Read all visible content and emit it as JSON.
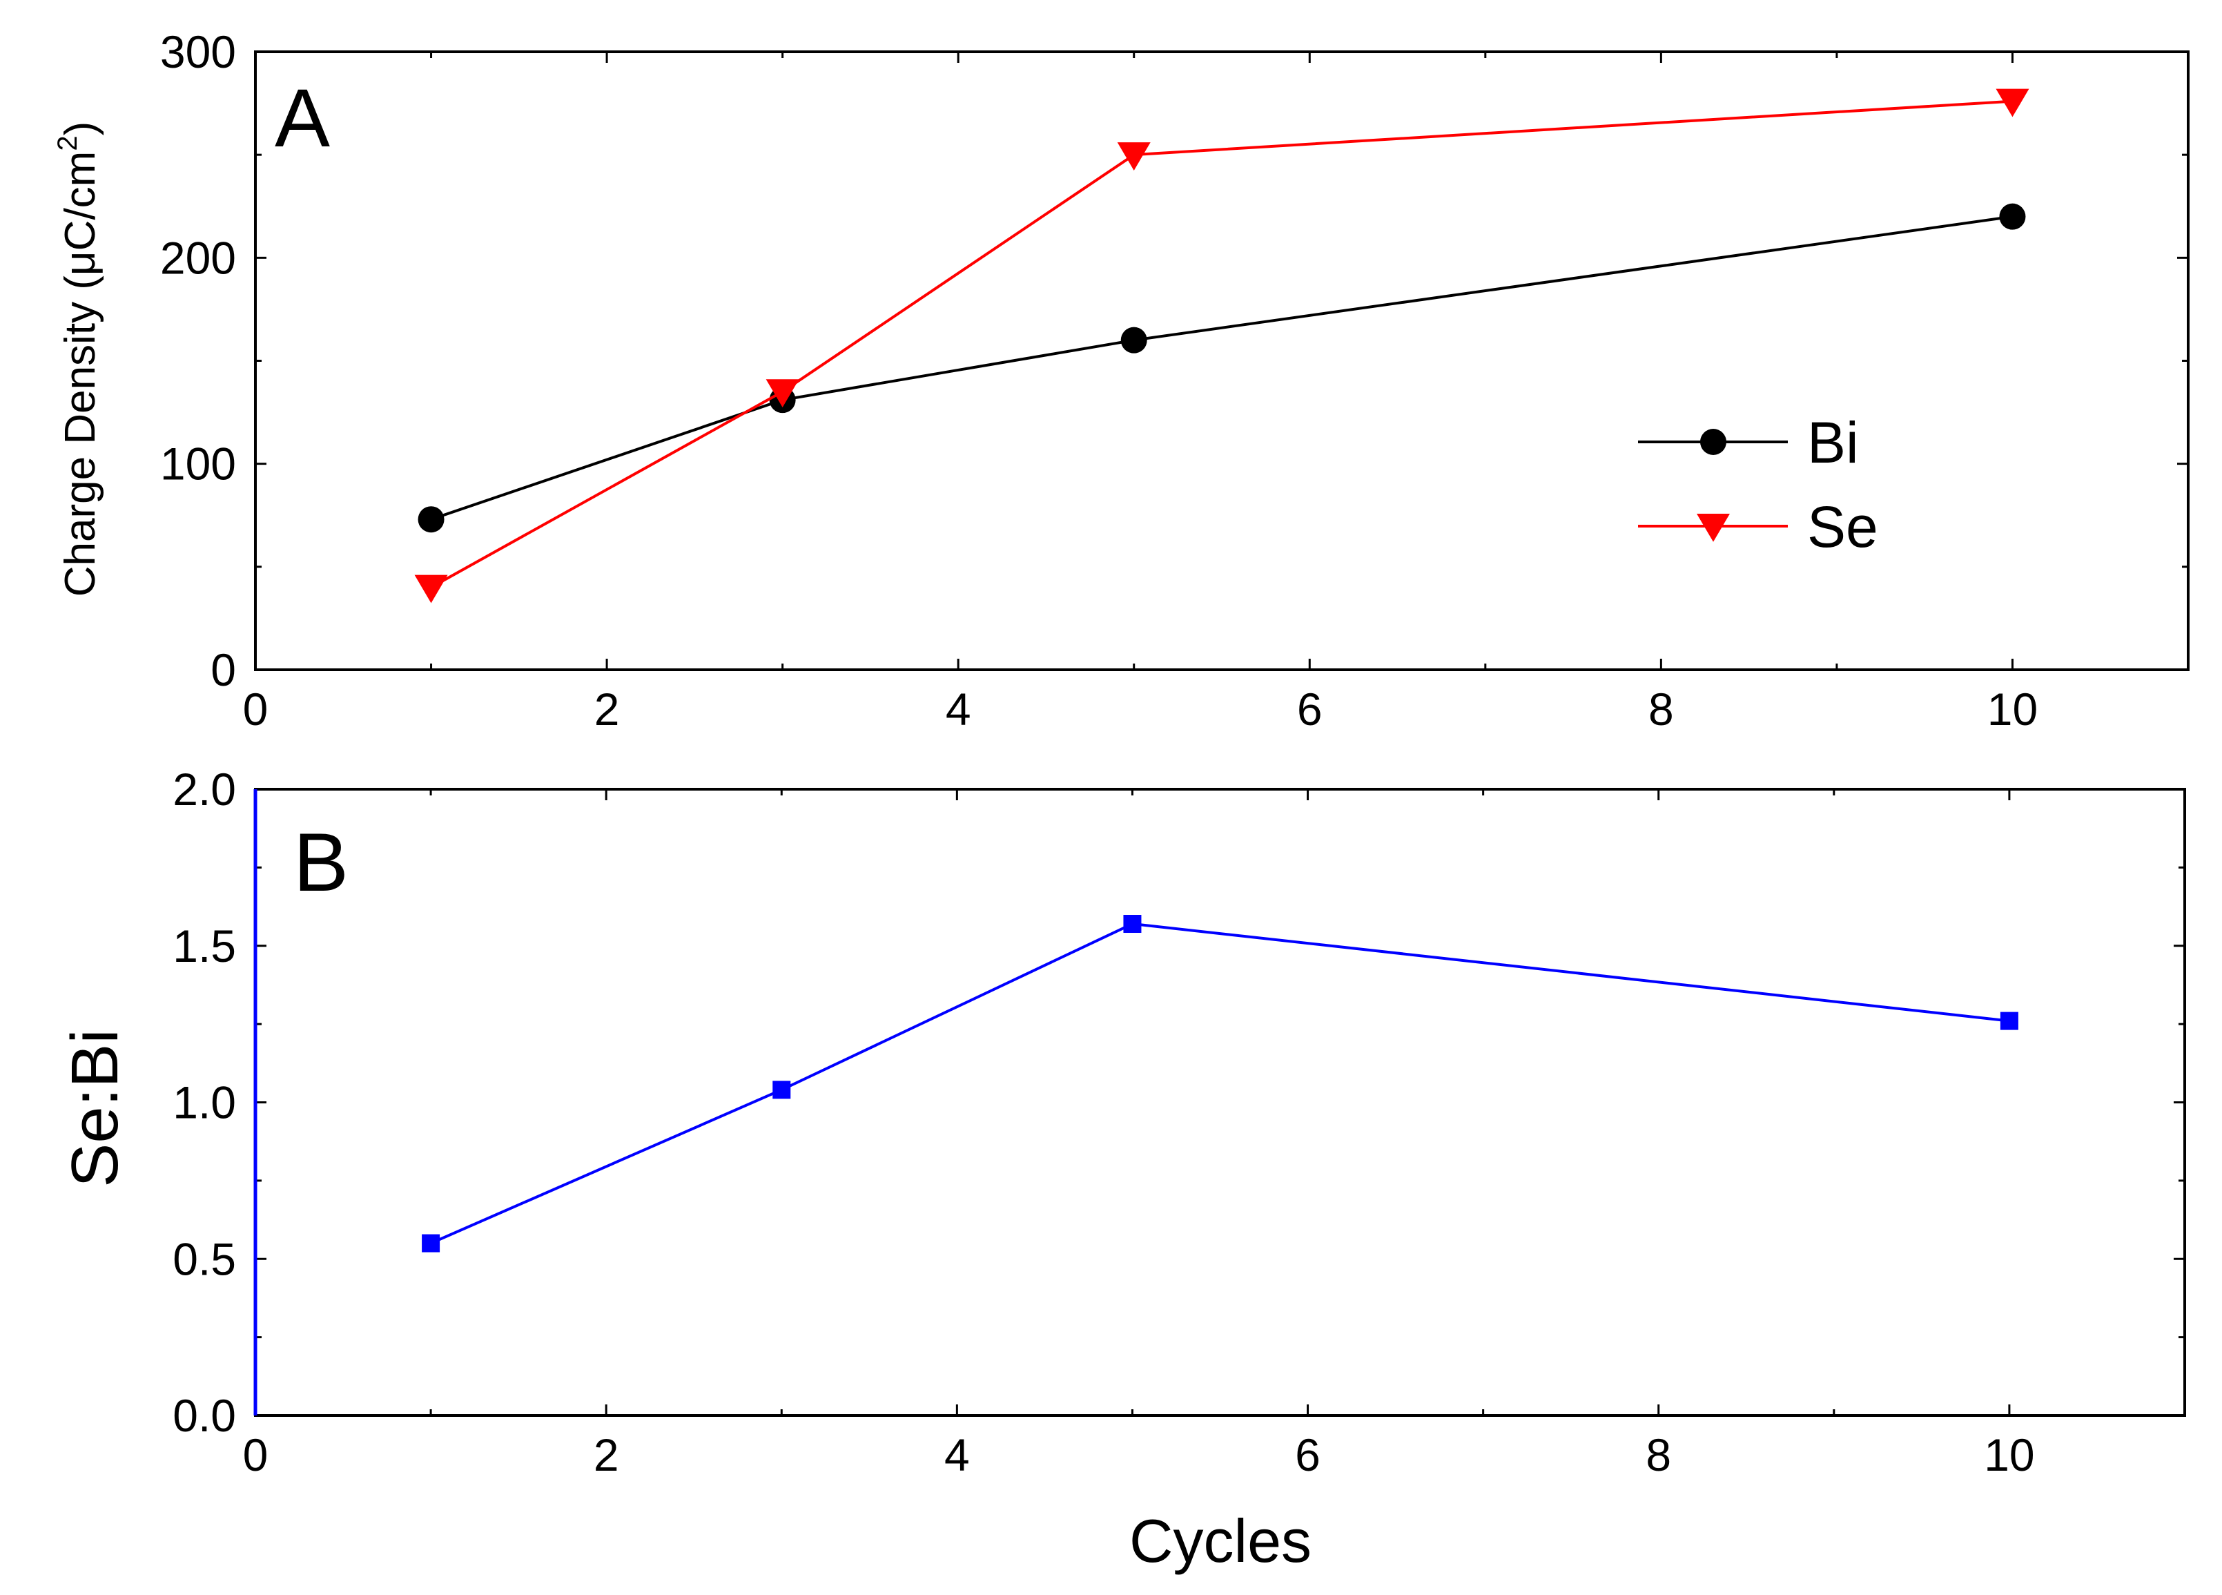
{
  "chart_data": [
    {
      "type": "line",
      "panel_label": "A",
      "xlabel": "",
      "ylabel_prefix": "Charge Density (",
      "ylabel_mu": "μ",
      "ylabel_unit": "C/cm",
      "ylabel_sup": "2",
      "ylabel_suffix": ")",
      "xlim": [
        0,
        11
      ],
      "ylim": [
        0,
        300
      ],
      "xticks": [
        0,
        2,
        4,
        6,
        8,
        10
      ],
      "yticks": [
        0,
        100,
        200,
        300
      ],
      "x": [
        1,
        3,
        5,
        10
      ],
      "legend_position": "center-right",
      "series": [
        {
          "name": "Bi",
          "color": "#000000",
          "marker": "circle",
          "values": [
            73,
            131,
            160,
            220
          ]
        },
        {
          "name": "Se",
          "color": "#ff0000",
          "marker": "triangle-down",
          "values": [
            40,
            135,
            250,
            276
          ]
        }
      ]
    },
    {
      "type": "line",
      "panel_label": "B",
      "xlabel": "Cycles",
      "ylabel": "Se:Bi",
      "xlim": [
        0,
        11
      ],
      "ylim": [
        0,
        2.0
      ],
      "xticks": [
        0,
        2,
        4,
        6,
        8,
        10
      ],
      "yticks": [
        "0.0",
        "0.5",
        "1.0",
        "1.5",
        "2.0"
      ],
      "x": [
        1,
        3,
        5,
        10
      ],
      "series": [
        {
          "name": "Se:Bi",
          "color": "#0000ff",
          "marker": "square",
          "values": [
            0.55,
            1.04,
            1.57,
            1.26
          ]
        }
      ]
    }
  ]
}
